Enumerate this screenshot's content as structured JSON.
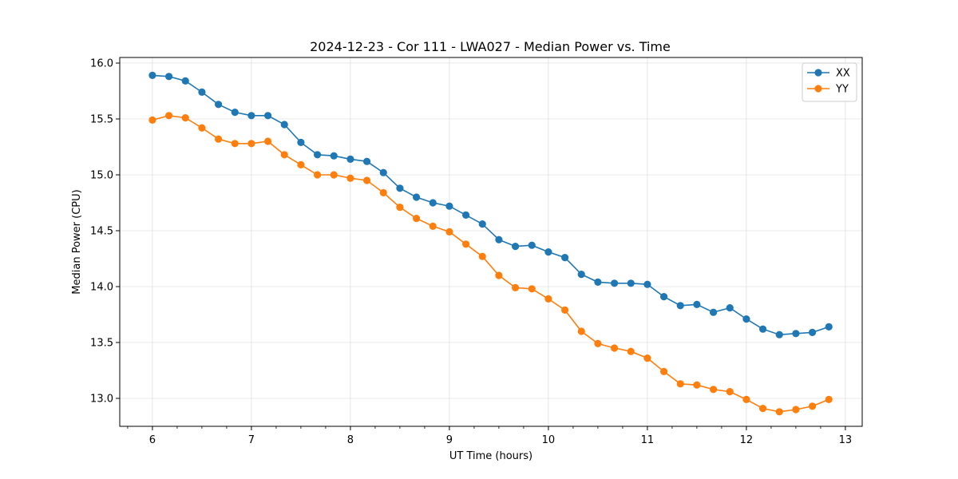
{
  "chart_data": {
    "type": "line",
    "title": "2024-12-23 - Cor 111 - LWA027 - Median Power vs. Time",
    "xlabel": "UT Time (hours)",
    "ylabel": "Median Power (CPU)",
    "xlim": [
      5.67,
      13.17
    ],
    "ylim": [
      12.75,
      16.05
    ],
    "xticks": [
      6,
      7,
      8,
      9,
      10,
      11,
      12,
      13
    ],
    "xtick_labels": [
      "6",
      "7",
      "8",
      "9",
      "10",
      "11",
      "12",
      "13"
    ],
    "yticks": [
      13.0,
      13.5,
      14.0,
      14.5,
      15.0,
      15.5,
      16.0
    ],
    "ytick_labels": [
      "13.0",
      "13.5",
      "14.0",
      "14.5",
      "15.0",
      "15.5",
      "16.0"
    ],
    "grid": true,
    "legend_position": "top-right",
    "x": [
      6.0,
      6.1667,
      6.3333,
      6.5,
      6.6667,
      6.8333,
      7.0,
      7.1667,
      7.3333,
      7.5,
      7.6667,
      7.8333,
      8.0,
      8.1667,
      8.3333,
      8.5,
      8.6667,
      8.8333,
      9.0,
      9.1667,
      9.3333,
      9.5,
      9.6667,
      9.8333,
      10.0,
      10.1667,
      10.3333,
      10.5,
      10.6667,
      10.8333,
      11.0,
      11.1667,
      11.3333,
      11.5,
      11.6667,
      11.8333,
      12.0,
      12.1667,
      12.3333,
      12.5,
      12.6667,
      12.8333
    ],
    "series": [
      {
        "name": "XX",
        "color": "#1f77b4",
        "values": [
          15.89,
          15.88,
          15.84,
          15.74,
          15.63,
          15.56,
          15.53,
          15.53,
          15.45,
          15.29,
          15.18,
          15.17,
          15.14,
          15.12,
          15.02,
          14.88,
          14.8,
          14.75,
          14.72,
          14.64,
          14.56,
          14.42,
          14.36,
          14.37,
          14.31,
          14.26,
          14.11,
          14.04,
          14.03,
          14.03,
          14.02,
          13.91,
          13.83,
          13.84,
          13.77,
          13.81,
          13.71,
          13.62,
          13.57,
          13.58,
          13.59,
          13.64
        ]
      },
      {
        "name": "YY",
        "color": "#ff7f0e",
        "values": [
          15.49,
          15.53,
          15.51,
          15.42,
          15.32,
          15.28,
          15.28,
          15.3,
          15.18,
          15.09,
          15.0,
          15.0,
          14.97,
          14.95,
          14.84,
          14.71,
          14.61,
          14.54,
          14.49,
          14.38,
          14.27,
          14.1,
          13.99,
          13.98,
          13.89,
          13.79,
          13.6,
          13.49,
          13.45,
          13.42,
          13.36,
          13.24,
          13.13,
          13.12,
          13.08,
          13.06,
          12.99,
          12.91,
          12.88,
          12.9,
          12.93,
          12.99
        ]
      }
    ]
  }
}
